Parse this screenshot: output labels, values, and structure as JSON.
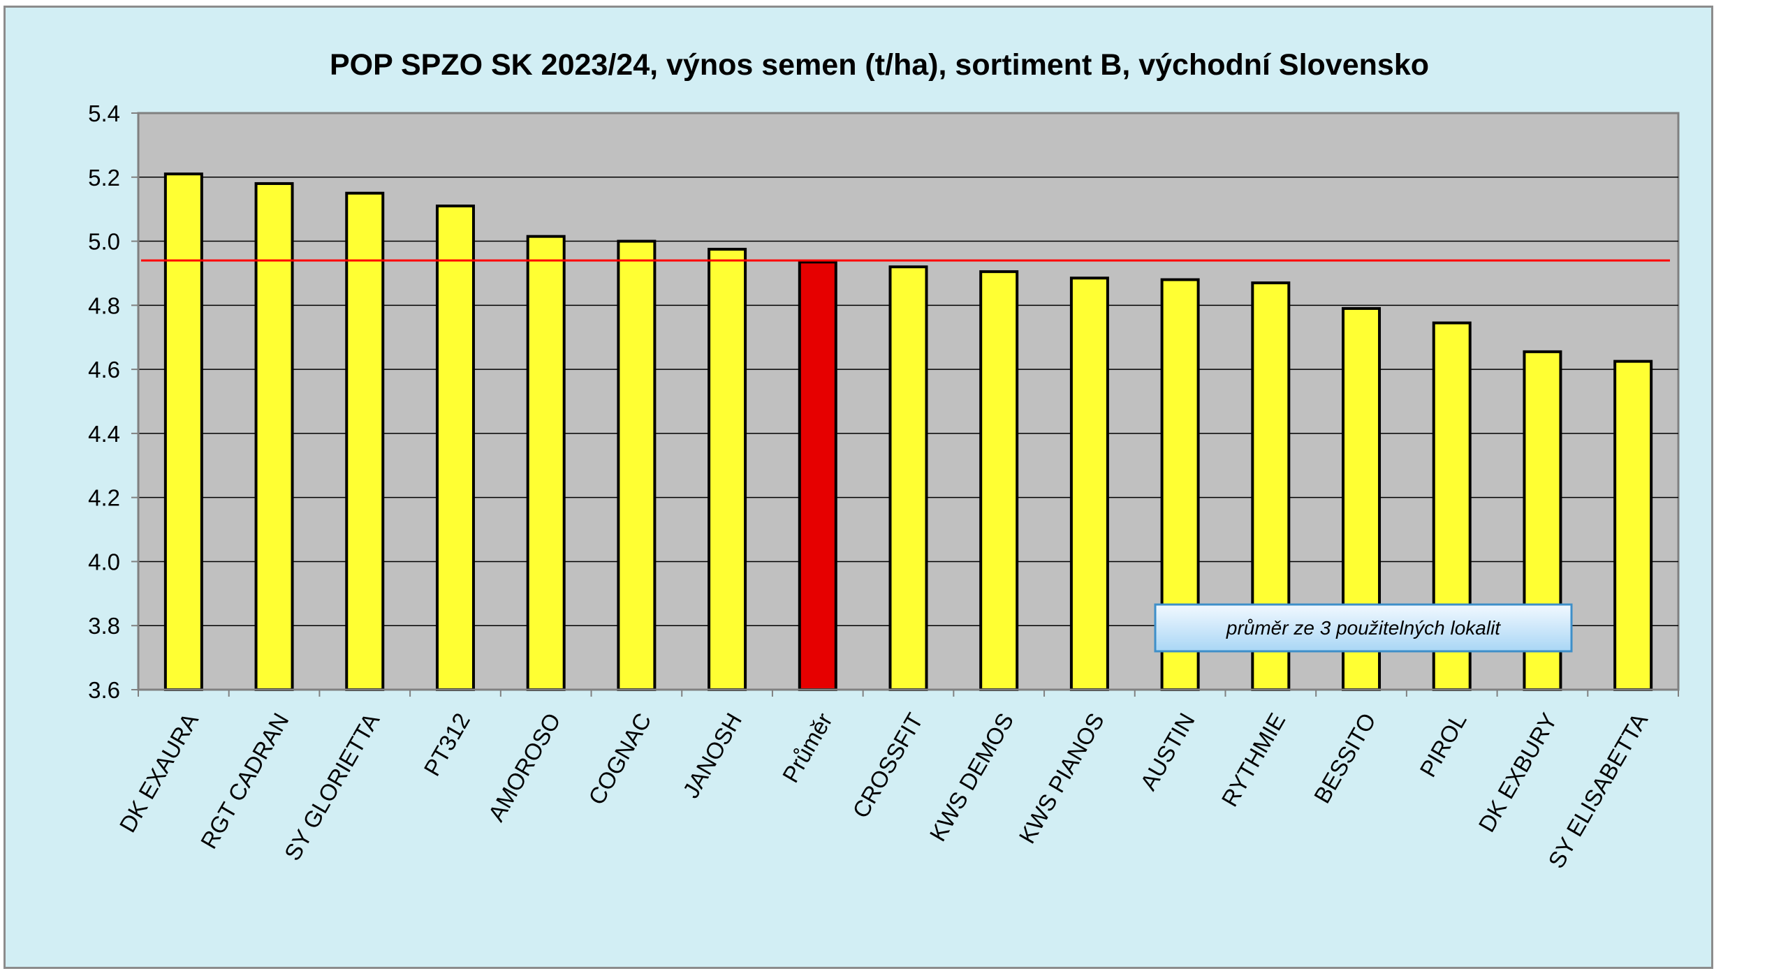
{
  "chart_data": {
    "type": "bar",
    "title": "POP SPZO SK 2023/24, výnos semen (t/ha), sortiment B, východní Slovensko",
    "xlabel": "",
    "ylabel": "",
    "ylim": [
      3.6,
      5.4
    ],
    "yticks": [
      "5.4",
      "5.2",
      "5.0",
      "4.8",
      "4.6",
      "4.4",
      "4.2",
      "4.0",
      "3.8",
      "3.6"
    ],
    "grid": true,
    "categories": [
      "DK EXAURA",
      "RGT CADRAN",
      "SY GLORIETTA",
      "PT312",
      "AMOROSO",
      "COGNAC",
      "JANOSH",
      "Průměr",
      "CROSSFIT",
      "KWS DEMOS",
      "KWS PIANOS",
      "AUSTIN",
      "RYTHMIE",
      "BESSITO",
      "PIROL",
      "DK EXBURY",
      "SY ELISABETTA"
    ],
    "values": [
      5.21,
      5.18,
      5.15,
      5.11,
      5.015,
      5.0,
      4.975,
      4.935,
      4.92,
      4.905,
      4.885,
      4.88,
      4.87,
      4.79,
      4.745,
      4.655,
      4.625
    ],
    "highlight_index": 7,
    "reference_line": 4.94,
    "annotation": "průměr ze 3 použitelných lokalit",
    "colors": {
      "bar": "#ffff33",
      "highlight_bar": "#e60000",
      "reference_line": "#ff0000",
      "plot_background": "#c0c0c0",
      "chart_background": "#d2eef4",
      "bar_border": "#000000"
    }
  }
}
